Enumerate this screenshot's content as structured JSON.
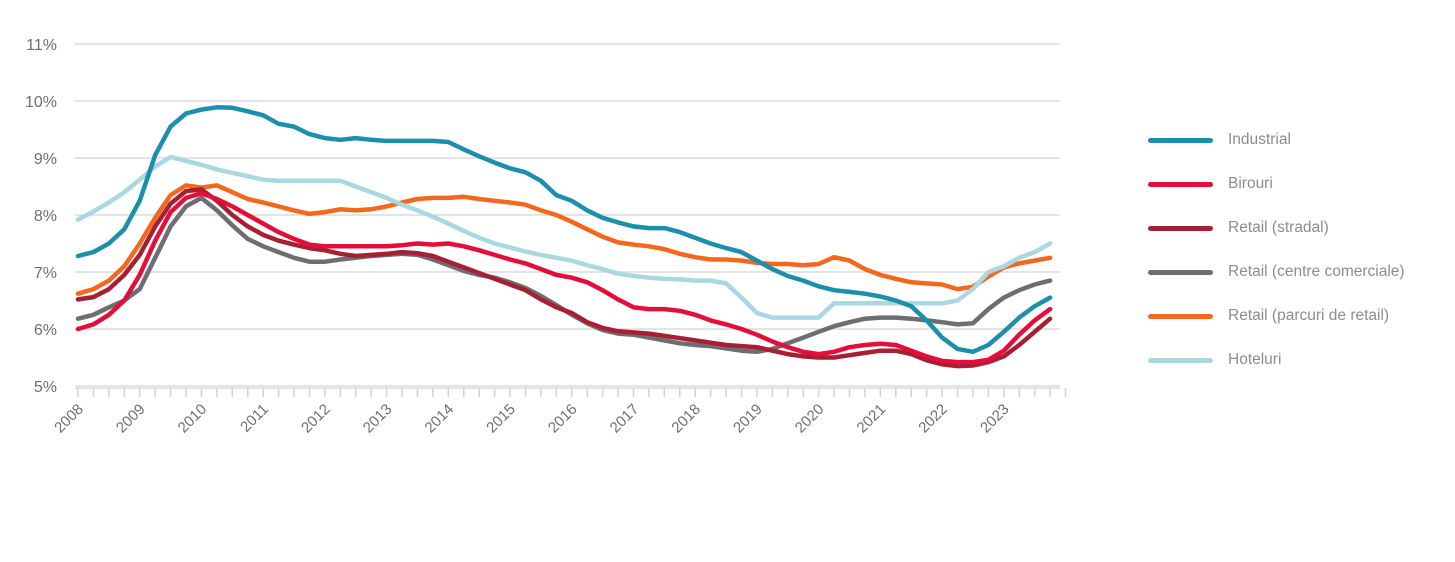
{
  "chart": {
    "y_axis_tick_labels": [
      "11%",
      "10%",
      "9%",
      "8%",
      "7%",
      "6%",
      "5%"
    ],
    "x_axis_year_labels": [
      "2008",
      "2009",
      "2010",
      "2011",
      "2012",
      "2013",
      "2014",
      "2015",
      "2016",
      "2017",
      "2018",
      "2019",
      "2020",
      "2021",
      "2022",
      "2023"
    ],
    "colors": {
      "grid": "#e4e4e4",
      "axis_tick": "#d2d2d2",
      "label_text": "#6d6e71",
      "legend_text": "#8c8c8c",
      "background": "#ffffff"
    }
  },
  "chart_data": {
    "type": "line",
    "title": "",
    "xlabel": "",
    "ylabel": "",
    "ylim": [
      5,
      11
    ],
    "grid": "horizontal",
    "legend_position": "right",
    "x_unit": "quarterly, 2008Q1 - 2023Q4",
    "categories_years": [
      "2008",
      "2009",
      "2010",
      "2011",
      "2012",
      "2013",
      "2014",
      "2015",
      "2016",
      "2017",
      "2018",
      "2019",
      "2020",
      "2021",
      "2022",
      "2023"
    ],
    "y_ticks_percent": [
      11,
      10,
      9,
      8,
      7,
      6,
      5
    ],
    "series": [
      {
        "name": "Industrial",
        "color": "#1b8fab",
        "values": [
          7.28,
          7.35,
          7.5,
          7.75,
          8.25,
          9.05,
          9.55,
          9.78,
          9.85,
          9.89,
          9.88,
          9.82,
          9.75,
          9.6,
          9.55,
          9.42,
          9.35,
          9.32,
          9.35,
          9.32,
          9.3,
          9.3,
          9.3,
          9.3,
          9.28,
          9.15,
          9.03,
          8.92,
          8.82,
          8.75,
          8.6,
          8.35,
          8.25,
          8.08,
          7.95,
          7.87,
          7.8,
          7.77,
          7.77,
          7.7,
          7.6,
          7.5,
          7.42,
          7.35,
          7.2,
          7.05,
          6.93,
          6.85,
          6.75,
          6.68,
          6.65,
          6.62,
          6.57,
          6.5,
          6.4,
          6.15,
          5.85,
          5.65,
          5.6,
          5.72,
          5.95,
          6.2,
          6.4,
          6.55
        ]
      },
      {
        "name": "Birouri",
        "color": "#e40e3a",
        "values": [
          6.0,
          6.08,
          6.25,
          6.5,
          6.95,
          7.55,
          8.05,
          8.3,
          8.38,
          8.28,
          8.15,
          8.0,
          7.85,
          7.7,
          7.58,
          7.48,
          7.45,
          7.45,
          7.45,
          7.45,
          7.45,
          7.47,
          7.5,
          7.48,
          7.5,
          7.45,
          7.38,
          7.3,
          7.22,
          7.15,
          7.05,
          6.95,
          6.9,
          6.82,
          6.68,
          6.52,
          6.38,
          6.35,
          6.35,
          6.32,
          6.25,
          6.15,
          6.08,
          6.0,
          5.9,
          5.78,
          5.68,
          5.6,
          5.56,
          5.6,
          5.68,
          5.72,
          5.74,
          5.72,
          5.62,
          5.52,
          5.44,
          5.42,
          5.42,
          5.46,
          5.62,
          5.9,
          6.15,
          6.35
        ]
      },
      {
        "name": "Retail (stradal)",
        "color": "#a81e33",
        "values": [
          6.52,
          6.56,
          6.7,
          6.95,
          7.3,
          7.8,
          8.2,
          8.42,
          8.45,
          8.25,
          8.0,
          7.8,
          7.65,
          7.55,
          7.48,
          7.42,
          7.38,
          7.32,
          7.28,
          7.3,
          7.32,
          7.35,
          7.33,
          7.28,
          7.18,
          7.08,
          6.98,
          6.88,
          6.78,
          6.68,
          6.52,
          6.38,
          6.28,
          6.12,
          6.02,
          5.96,
          5.94,
          5.92,
          5.88,
          5.84,
          5.8,
          5.76,
          5.72,
          5.7,
          5.68,
          5.62,
          5.56,
          5.52,
          5.5,
          5.5,
          5.54,
          5.58,
          5.62,
          5.62,
          5.56,
          5.45,
          5.38,
          5.35,
          5.36,
          5.42,
          5.52,
          5.72,
          5.95,
          6.18
        ]
      },
      {
        "name": "Retail (centre comerciale)",
        "color": "#6d6e71",
        "values": [
          6.18,
          6.25,
          6.38,
          6.5,
          6.7,
          7.25,
          7.8,
          8.15,
          8.3,
          8.08,
          7.82,
          7.58,
          7.45,
          7.35,
          7.25,
          7.18,
          7.18,
          7.22,
          7.25,
          7.28,
          7.3,
          7.32,
          7.3,
          7.22,
          7.12,
          7.02,
          6.95,
          6.9,
          6.82,
          6.72,
          6.58,
          6.42,
          6.25,
          6.1,
          5.98,
          5.92,
          5.9,
          5.85,
          5.8,
          5.75,
          5.72,
          5.7,
          5.66,
          5.62,
          5.6,
          5.65,
          5.75,
          5.85,
          5.95,
          6.05,
          6.12,
          6.18,
          6.2,
          6.2,
          6.18,
          6.15,
          6.12,
          6.08,
          6.1,
          6.35,
          6.55,
          6.68,
          6.78,
          6.85
        ]
      },
      {
        "name": "Retail (parcuri de retail)",
        "color": "#f3681c",
        "values": [
          6.62,
          6.7,
          6.85,
          7.1,
          7.5,
          7.95,
          8.35,
          8.52,
          8.48,
          8.52,
          8.4,
          8.28,
          8.22,
          8.15,
          8.08,
          8.02,
          8.05,
          8.1,
          8.08,
          8.1,
          8.15,
          8.22,
          8.28,
          8.3,
          8.3,
          8.32,
          8.28,
          8.25,
          8.22,
          8.18,
          8.08,
          8.0,
          7.88,
          7.75,
          7.62,
          7.52,
          7.48,
          7.45,
          7.4,
          7.32,
          7.26,
          7.22,
          7.22,
          7.2,
          7.16,
          7.14,
          7.14,
          7.12,
          7.14,
          7.26,
          7.2,
          7.05,
          6.95,
          6.88,
          6.82,
          6.8,
          6.78,
          6.7,
          6.74,
          6.92,
          7.08,
          7.15,
          7.2,
          7.25
        ]
      },
      {
        "name": "Hoteluri",
        "color": "#a9d7e2",
        "values": [
          7.92,
          8.06,
          8.22,
          8.4,
          8.62,
          8.85,
          9.02,
          8.95,
          8.88,
          8.8,
          8.74,
          8.68,
          8.62,
          8.6,
          8.6,
          8.6,
          8.6,
          8.6,
          8.5,
          8.4,
          8.3,
          8.18,
          8.08,
          7.97,
          7.85,
          7.72,
          7.6,
          7.5,
          7.43,
          7.36,
          7.3,
          7.25,
          7.2,
          7.12,
          7.05,
          6.97,
          6.93,
          6.9,
          6.88,
          6.87,
          6.85,
          6.85,
          6.8,
          6.55,
          6.28,
          6.2,
          6.2,
          6.2,
          6.2,
          6.45,
          6.45,
          6.45,
          6.45,
          6.45,
          6.45,
          6.45,
          6.45,
          6.5,
          6.7,
          7.0,
          7.1,
          7.25,
          7.35,
          7.5
        ]
      }
    ]
  }
}
